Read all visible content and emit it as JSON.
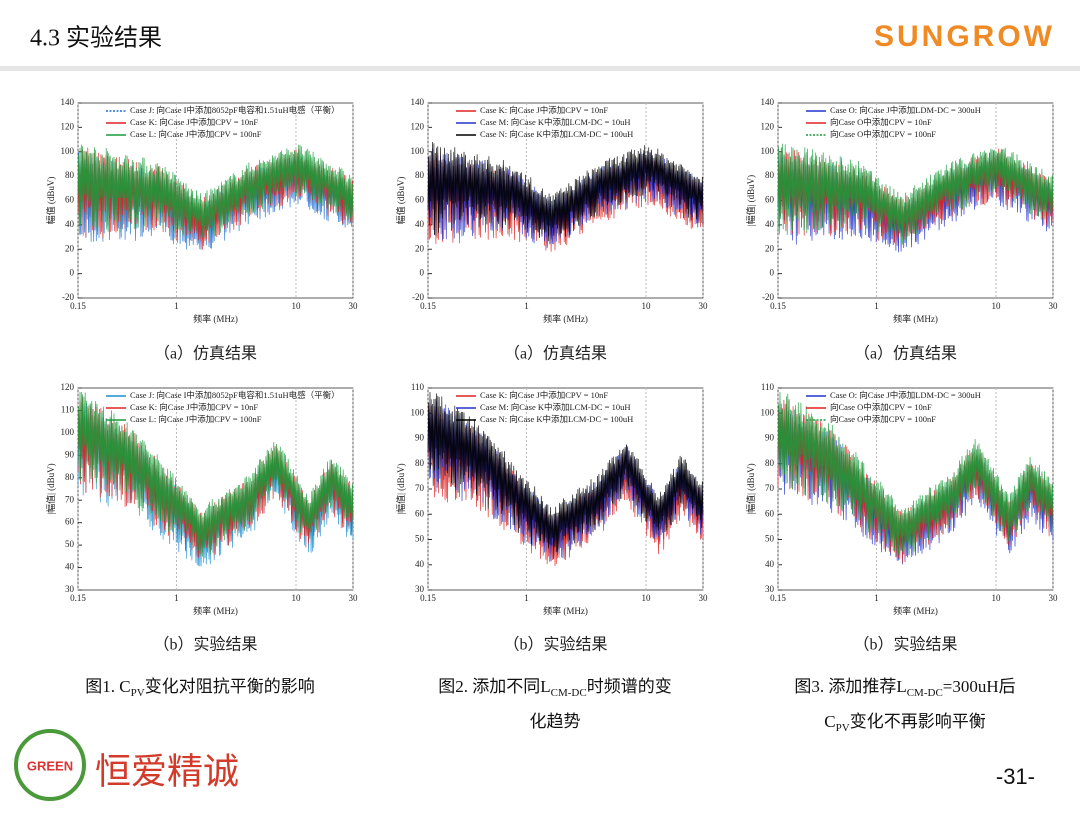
{
  "header": {
    "title": "4.3  实验结果",
    "logo": "SUNGROW"
  },
  "panels": [
    {
      "ylabel": "幅值 (dBuV)",
      "xlabel": "频率 (MHz)",
      "caption": "（a）仿真结果",
      "yticks": [
        "140",
        "120",
        "100",
        "80",
        "60",
        "40",
        "20",
        "0",
        "-20"
      ],
      "xticks": [
        "0.15",
        "1",
        "10",
        "30"
      ],
      "legend": [
        {
          "text": "Case J: 向Case I中添加8052pF电容和1.51uH电感（平衡）",
          "color": "#1f6fd1",
          "dash": true
        },
        {
          "text": "Case K: 向Case J中添加CPV = 10nF",
          "color": "#e02020"
        },
        {
          "text": "Case L: 向Case J中添加CPV = 100nF",
          "color": "#1a9a3a"
        }
      ]
    },
    {
      "ylabel": "幅值 (dBuV)",
      "xlabel": "频率 (MHz)",
      "caption": "（a）仿真结果",
      "yticks": [
        "140",
        "120",
        "100",
        "80",
        "60",
        "40",
        "20",
        "0",
        "-20"
      ],
      "xticks": [
        "0.15",
        "1",
        "10",
        "30"
      ],
      "legend": [
        {
          "text": "Case K: 向Case J中添加CPV = 10nF",
          "color": "#e02020"
        },
        {
          "text": "Case M: 向Case K中添加LCM-DC = 10uH",
          "color": "#2233cc"
        },
        {
          "text": "Case N: 向Case K中添加LCM-DC = 100uH",
          "color": "#000000"
        }
      ]
    },
    {
      "ylabel": "|幅值| (dBuV)",
      "xlabel": "频率 (MHz)",
      "caption": "（a）仿真结果",
      "yticks": [
        "140",
        "120",
        "100",
        "80",
        "60",
        "40",
        "20",
        "0",
        "-20"
      ],
      "xticks": [
        "0.15",
        "1",
        "10",
        "30"
      ],
      "legend": [
        {
          "text": "Case O: 向Case J中添加LDM-DC = 300uH",
          "color": "#2233cc"
        },
        {
          "text": "向Case O中添加CPV = 10nF",
          "color": "#e02020"
        },
        {
          "text": "向Case O中添加CPV = 100nF",
          "color": "#1a9a3a",
          "dash": true
        }
      ]
    },
    {
      "ylabel": "|幅值| (dBuV)",
      "xlabel": "频率 (MHz)",
      "caption": "（b）实验结果",
      "yticks": [
        "120",
        "110",
        "100",
        "90",
        "80",
        "70",
        "60",
        "50",
        "40",
        "30"
      ],
      "xticks": [
        "0.15",
        "1",
        "10",
        "30"
      ],
      "legend": [
        {
          "text": "Case J: 向Case I中添加8052pF电容和1.51uH电感（平衡）",
          "color": "#1f8fd1"
        },
        {
          "text": "Case K: 向Case J中添加CPV = 10nF",
          "color": "#e02020"
        },
        {
          "text": "Case L: 向Case J中添加CPV = 100nF",
          "color": "#1a9a3a"
        }
      ]
    },
    {
      "ylabel": "|幅值| (dBuV)",
      "xlabel": "频率 (MHz)",
      "caption": "（b）实验结果",
      "yticks": [
        "110",
        "100",
        "90",
        "80",
        "70",
        "60",
        "50",
        "40",
        "30"
      ],
      "xticks": [
        "0.15",
        "1",
        "10",
        "30"
      ],
      "legend": [
        {
          "text": "Case K: 向Case J中添加CPV = 10nF",
          "color": "#e02020"
        },
        {
          "text": "Case M: 向Case K中添加LCM-DC = 10uH",
          "color": "#2233cc"
        },
        {
          "text": "Case N: 向Case K中添加LCM-DC = 100uH",
          "color": "#000000"
        }
      ]
    },
    {
      "ylabel": "|幅值| (dBuV)",
      "xlabel": "频率 (MHz)",
      "caption": "（b）实验结果",
      "yticks": [
        "110",
        "100",
        "90",
        "80",
        "70",
        "60",
        "50",
        "40",
        "30"
      ],
      "xticks": [
        "0.15",
        "1",
        "10",
        "30"
      ],
      "legend": [
        {
          "text": "Case O: 向Case J中添加LDM-DC = 300uH",
          "color": "#2233cc"
        },
        {
          "text": "向Case O中添加CPV = 10nF",
          "color": "#e02020"
        },
        {
          "text": "向Case O中添加CPV = 100nF",
          "color": "#1a9a3a",
          "dash": true
        }
      ]
    }
  ],
  "figures": [
    {
      "lines": [
        [
          {
            "t": "图1. C"
          },
          {
            "t": "PV",
            "sub": true
          },
          {
            "t": "变化对阻抗平衡的影响"
          }
        ]
      ]
    },
    {
      "lines": [
        [
          {
            "t": "图2. 添加不同L"
          },
          {
            "t": "CM-DC",
            "sub": true
          },
          {
            "t": "时频谱的变"
          }
        ],
        [
          {
            "t": "化趋势"
          }
        ]
      ]
    },
    {
      "lines": [
        [
          {
            "t": "图3. 添加推荐L"
          },
          {
            "t": "CM-DC",
            "sub": true
          },
          {
            "t": "=300uH后"
          }
        ],
        [
          {
            "t": "C"
          },
          {
            "t": "PV",
            "sub": true
          },
          {
            "t": "变化不再影响平衡"
          }
        ]
      ]
    }
  ],
  "footer": {
    "badge": "GREEN",
    "brand": "恒爱精诚",
    "page": "-31-"
  }
}
